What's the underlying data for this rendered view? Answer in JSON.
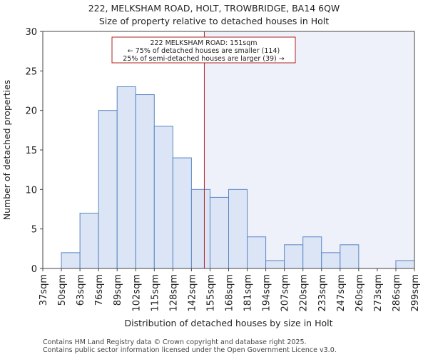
{
  "chart_data": {
    "type": "bar",
    "title": "222, MELKSHAM ROAD, HOLT, TROWBRIDGE, BA14 6QW",
    "subtitle": "Size of property relative to detached houses in Holt",
    "xlabel": "Distribution of detached houses by size in Holt",
    "ylabel": "Number of detached properties",
    "bin_edges": [
      37,
      50,
      63,
      76,
      89,
      102,
      115,
      128,
      142,
      155,
      168,
      181,
      194,
      207,
      220,
      233,
      247,
      260,
      273,
      286,
      299
    ],
    "tick_labels": [
      "37sqm",
      "50sqm",
      "63sqm",
      "76sqm",
      "89sqm",
      "102sqm",
      "115sqm",
      "128sqm",
      "142sqm",
      "155sqm",
      "168sqm",
      "181sqm",
      "194sqm",
      "207sqm",
      "220sqm",
      "233sqm",
      "247sqm",
      "260sqm",
      "273sqm",
      "286sqm",
      "299sqm"
    ],
    "values": [
      0,
      2,
      7,
      20,
      23,
      22,
      18,
      14,
      10,
      9,
      10,
      4,
      1,
      3,
      4,
      2,
      3,
      0,
      0,
      1
    ],
    "ylim": [
      0,
      30
    ],
    "yticks": [
      0,
      5,
      10,
      15,
      20,
      25,
      30
    ],
    "property_marker": 151,
    "annotation": {
      "line1": "222 MELKSHAM ROAD: 151sqm",
      "line2": "← 75% of detached houses are smaller (114)",
      "line3": "25% of semi-detached houses are larger (39) →"
    },
    "colors": {
      "bar_fill": "#dbe5f5",
      "bar_stroke": "#5a86c4",
      "marker": "#b22222",
      "highlight": "#eef1fa"
    }
  },
  "footer": {
    "line1": "Contains HM Land Registry data © Crown copyright and database right 2025.",
    "line2": "Contains public sector information licensed under the Open Government Licence v3.0."
  }
}
